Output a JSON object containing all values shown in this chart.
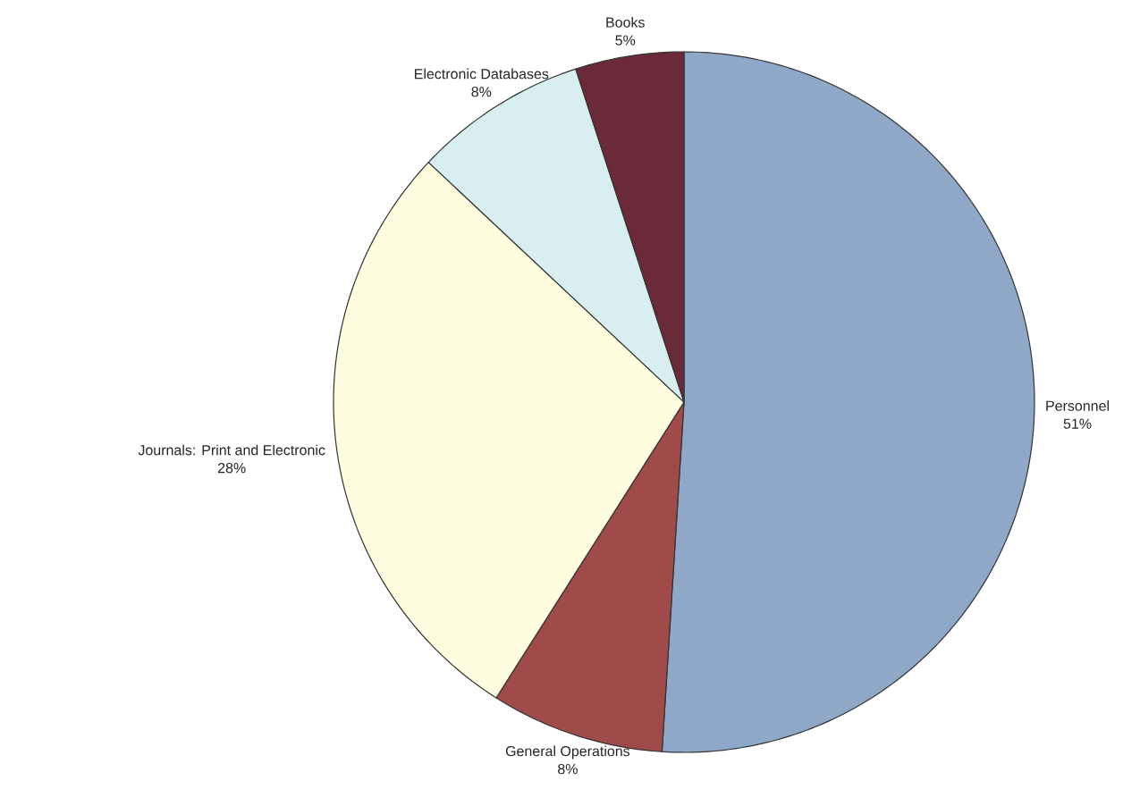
{
  "chart_data": {
    "type": "pie",
    "categories": [
      "Personnel",
      "General Operations",
      "Journals: Print and Electronic",
      "Electronic Databases",
      "Books"
    ],
    "values": [
      51,
      8,
      28,
      8,
      5
    ],
    "colors": [
      "#8fa8c8",
      "#a04a4a",
      "#fffde0",
      "#d8eef0",
      "#6a2a3a"
    ],
    "value_labels": [
      "51%",
      "8%",
      "28%",
      "8%",
      "5%"
    ]
  }
}
